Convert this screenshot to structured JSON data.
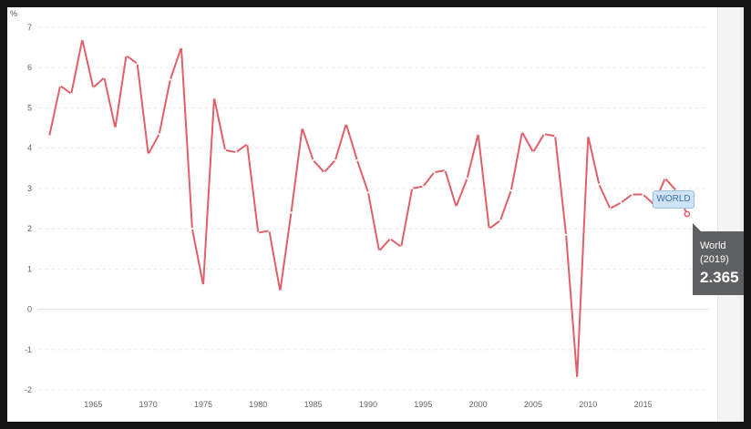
{
  "chart_data": {
    "type": "line",
    "unit_label": "%",
    "x": [
      1961,
      1962,
      1963,
      1964,
      1965,
      1966,
      1967,
      1968,
      1969,
      1970,
      1971,
      1972,
      1973,
      1974,
      1975,
      1976,
      1977,
      1978,
      1979,
      1980,
      1981,
      1982,
      1983,
      1984,
      1985,
      1986,
      1987,
      1988,
      1989,
      1990,
      1991,
      1992,
      1993,
      1994,
      1995,
      1996,
      1997,
      1998,
      1999,
      2000,
      2001,
      2002,
      2003,
      2004,
      2005,
      2006,
      2007,
      2008,
      2009,
      2010,
      2011,
      2012,
      2013,
      2014,
      2015,
      2016,
      2017,
      2018,
      2019
    ],
    "series": [
      {
        "name": "WORLD",
        "color": "#e0606a",
        "values": [
          4.3,
          5.55,
          5.35,
          6.7,
          5.5,
          5.75,
          4.5,
          6.3,
          6.1,
          3.85,
          4.35,
          5.7,
          6.5,
          2.0,
          0.6,
          5.25,
          3.95,
          3.9,
          4.1,
          1.9,
          1.95,
          0.45,
          2.4,
          4.5,
          3.7,
          3.4,
          3.7,
          4.6,
          3.7,
          2.9,
          1.45,
          1.75,
          1.55,
          3.0,
          3.05,
          3.4,
          3.45,
          2.55,
          3.25,
          4.35,
          2.0,
          2.2,
          2.95,
          4.4,
          3.9,
          4.35,
          4.3,
          1.85,
          -1.7,
          4.3,
          3.1,
          2.5,
          2.65,
          2.85,
          2.85,
          2.6,
          3.25,
          2.95,
          2.365
        ]
      }
    ],
    "xticks": [
      1965,
      1970,
      1975,
      1980,
      1985,
      1990,
      1995,
      2000,
      2005,
      2010,
      2015
    ],
    "yticks": [
      7,
      6,
      5,
      4,
      3,
      2,
      1,
      0,
      -1,
      -2
    ],
    "xlim": [
      1960,
      2021
    ],
    "ylim": [
      -2,
      7
    ],
    "grid": true,
    "legend": "none"
  },
  "tag": {
    "label": "WORLD"
  },
  "tooltip": {
    "name": "World",
    "year": "(2019)",
    "value": "2.365"
  }
}
